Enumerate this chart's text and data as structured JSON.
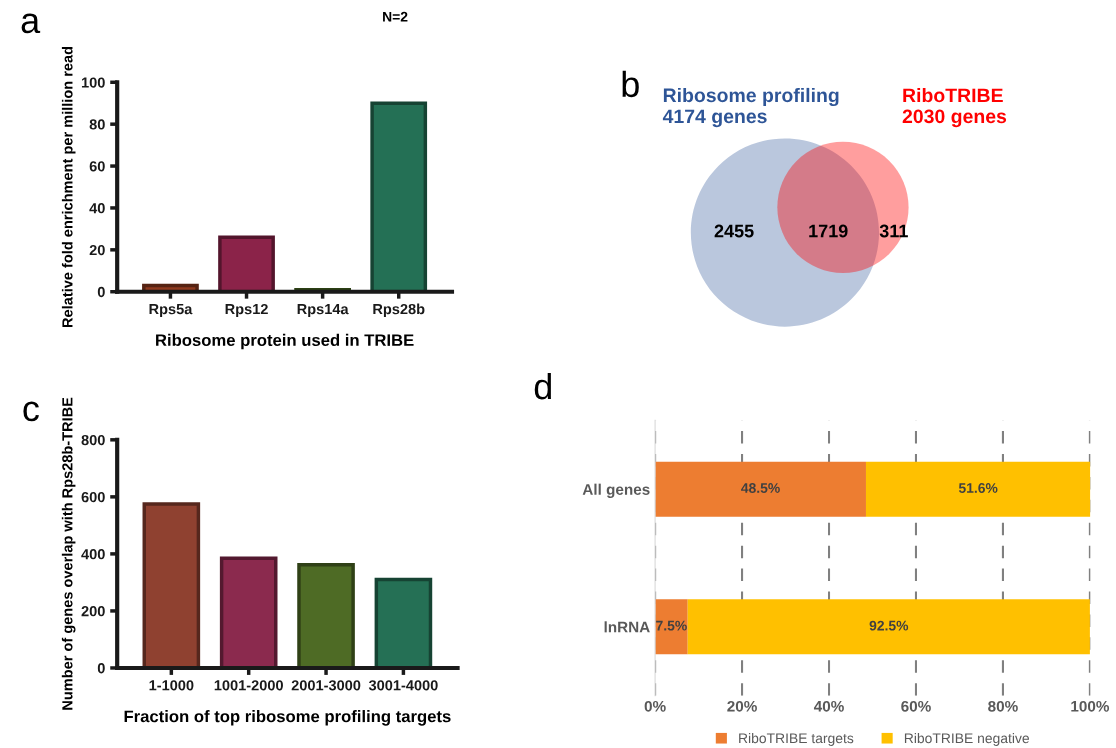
{
  "chart_data": [
    {
      "type": "bar",
      "title": "a",
      "categories": [
        "Rps5a",
        "Rps12",
        "Rps14a",
        "Rps28b"
      ],
      "values": [
        3,
        26,
        1,
        90
      ],
      "colors": [
        "#8f3a1f",
        "#8b2349",
        "#4a6b22",
        "#247055"
      ],
      "xlabel": "Ribosome protein used in TRIBE",
      "ylabel": "Relative fold enrichment per million read",
      "ylim": [
        0,
        100
      ],
      "yticks": [
        0,
        20,
        40,
        60,
        80,
        100
      ],
      "grid": false,
      "annotations": [
        "N=2"
      ]
    },
    {
      "type": "other",
      "title": "b",
      "annotations": [
        "2455",
        "1719",
        "311"
      ],
      "series": [
        {
          "name": "Ribosome profiling",
          "color": "#2e5597",
          "values": [
            4174
          ],
          "value_labels": [
            "4174 genes"
          ]
        },
        {
          "name": "RiboTRIBE",
          "color": "#ff0000",
          "values": [
            2030
          ],
          "value_labels": [
            "2030 genes"
          ]
        }
      ]
    },
    {
      "type": "bar",
      "title": "c",
      "categories": [
        "1-1000",
        "1001-2000",
        "2001-3000",
        "3001-4000"
      ],
      "values": [
        575,
        385,
        362,
        310
      ],
      "colors": [
        "#8f4130",
        "#8b2a4e",
        "#4e6b25",
        "#257055"
      ],
      "xlabel": "Fraction of top ribosome profiling targets",
      "ylabel": "Number of genes overlap with Rps28b-TRIBE",
      "ylim": [
        0,
        800
      ],
      "yticks": [
        0,
        200,
        400,
        600,
        800
      ],
      "grid": false
    },
    {
      "type": "bar",
      "title": "d",
      "orientation": "horizontal",
      "stacked": true,
      "categories": [
        "All genes",
        "lnRNA"
      ],
      "series": [
        {
          "name": "RiboTRIBE targets",
          "color": "#ed7d31",
          "values": [
            48.5,
            7.5
          ],
          "value_labels": [
            "48.5%",
            "7.5%"
          ]
        },
        {
          "name": "RiboTRIBE negative",
          "color": "#ffc000",
          "values": [
            51.6,
            92.5
          ],
          "value_labels": [
            "51.6%",
            "92.5%"
          ]
        }
      ],
      "xlim": [
        0,
        100.1
      ],
      "xticks": [
        {
          "value": 0,
          "label": "0%"
        },
        {
          "value": 20,
          "label": "20%"
        },
        {
          "value": 40,
          "label": "40%"
        },
        {
          "value": 60,
          "label": "60%"
        },
        {
          "value": 80,
          "label": "80%"
        },
        {
          "value": 100,
          "label": "100%"
        }
      ],
      "grid": "x",
      "legend": "bottom"
    }
  ]
}
